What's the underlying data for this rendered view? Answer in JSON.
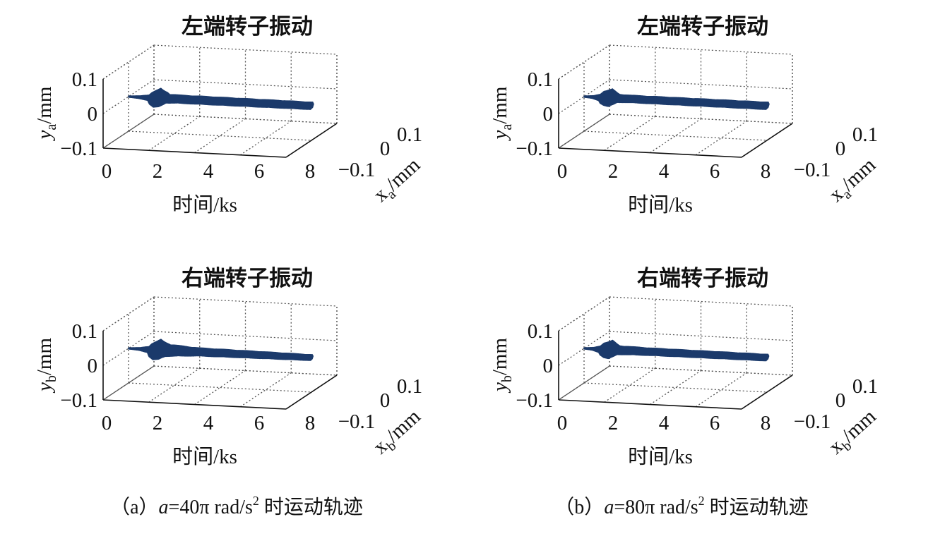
{
  "chart_data": [
    {
      "type": "line",
      "panel": "a-top",
      "title": "左端转子振动",
      "xlabel": "时间/ks",
      "ylabel_main": "y",
      "ylabel_sub": "a",
      "ylabel_unit": "/mm",
      "zlabel_main": "x",
      "zlabel_sub": "a",
      "zlabel_unit": "/mm",
      "time_ticks": [
        "0",
        "2",
        "4",
        "6",
        "8"
      ],
      "y_ticks": [
        "0.1",
        "0",
        "−0.1"
      ],
      "x_ticks": [
        "0.1",
        "0",
        "−0.1"
      ],
      "time_range": [
        0,
        8
      ],
      "y_range": [
        -0.1,
        0.1
      ],
      "x_range": [
        -0.1,
        0.1
      ],
      "grid": true,
      "envelope": {
        "time": [
          0,
          0.5,
          0.9,
          1.1,
          1.3,
          1.5,
          1.7,
          2.2,
          3,
          8
        ],
        "amplitude": [
          0.002,
          0.004,
          0.008,
          0.02,
          0.026,
          0.02,
          0.012,
          0.011,
          0.011,
          0.01
        ]
      }
    },
    {
      "type": "line",
      "panel": "b-top",
      "title": "左端转子振动",
      "xlabel": "时间/ks",
      "ylabel_main": "y",
      "ylabel_sub": "a",
      "ylabel_unit": "/mm",
      "zlabel_main": "x",
      "zlabel_sub": "a",
      "zlabel_unit": "/mm",
      "time_ticks": [
        "0",
        "2",
        "4",
        "6",
        "8"
      ],
      "y_ticks": [
        "0.1",
        "0",
        "−0.1"
      ],
      "x_ticks": [
        "0.1",
        "0",
        "−0.1"
      ],
      "time_range": [
        0,
        8
      ],
      "y_range": [
        -0.1,
        0.1
      ],
      "x_range": [
        -0.1,
        0.1
      ],
      "grid": true,
      "envelope": {
        "time": [
          0,
          0.4,
          0.7,
          0.9,
          1.1,
          1.3,
          1.5,
          2,
          3,
          8
        ],
        "amplitude": [
          0.002,
          0.004,
          0.009,
          0.02,
          0.024,
          0.018,
          0.011,
          0.01,
          0.01,
          0.01
        ]
      }
    },
    {
      "type": "line",
      "panel": "a-bottom",
      "title": "右端转子振动",
      "xlabel": "时间/ks",
      "ylabel_main": "y",
      "ylabel_sub": "b",
      "ylabel_unit": "/mm",
      "zlabel_main": "x",
      "zlabel_sub": "b",
      "zlabel_unit": "/mm",
      "time_ticks": [
        "0",
        "2",
        "4",
        "6",
        "8"
      ],
      "y_ticks": [
        "0.1",
        "0",
        "−0.1"
      ],
      "x_ticks": [
        "0.1",
        "0",
        "−0.1"
      ],
      "time_range": [
        0,
        8
      ],
      "y_range": [
        -0.1,
        0.1
      ],
      "x_range": [
        -0.1,
        0.1
      ],
      "grid": true,
      "envelope": {
        "time": [
          0,
          0.5,
          0.9,
          1.1,
          1.3,
          1.5,
          1.7,
          2.2,
          3,
          8
        ],
        "amplitude": [
          0.002,
          0.004,
          0.009,
          0.022,
          0.028,
          0.022,
          0.016,
          0.014,
          0.011,
          0.008
        ]
      }
    },
    {
      "type": "line",
      "panel": "b-bottom",
      "title": "右端转子振动",
      "xlabel": "时间/ks",
      "ylabel_main": "y",
      "ylabel_sub": "b",
      "ylabel_unit": "/mm",
      "zlabel_main": "x",
      "zlabel_sub": "b",
      "zlabel_unit": "/mm",
      "time_ticks": [
        "0",
        "2",
        "4",
        "6",
        "8"
      ],
      "y_ticks": [
        "0.1",
        "0",
        "−0.1"
      ],
      "x_ticks": [
        "0.1",
        "0",
        "−0.1"
      ],
      "time_range": [
        0,
        8
      ],
      "y_range": [
        -0.1,
        0.1
      ],
      "x_range": [
        -0.1,
        0.1
      ],
      "grid": true,
      "envelope": {
        "time": [
          0,
          0.4,
          0.7,
          0.9,
          1.1,
          1.3,
          1.5,
          2,
          3,
          8
        ],
        "amplitude": [
          0.002,
          0.004,
          0.009,
          0.02,
          0.025,
          0.019,
          0.012,
          0.011,
          0.01,
          0.009
        ]
      }
    }
  ],
  "captions": [
    {
      "prefix": "（a）",
      "var": "a",
      "expr": "=40π rad/s",
      "sup": "2",
      "suffix": " 时运动轨迹"
    },
    {
      "prefix": "（b）",
      "var": "a",
      "expr": "=80π rad/s",
      "sup": "2",
      "suffix": " 时运动轨迹"
    }
  ],
  "colors": {
    "trajectory": "#1b3a6b",
    "grid": "#555555",
    "axis": "#111111"
  }
}
